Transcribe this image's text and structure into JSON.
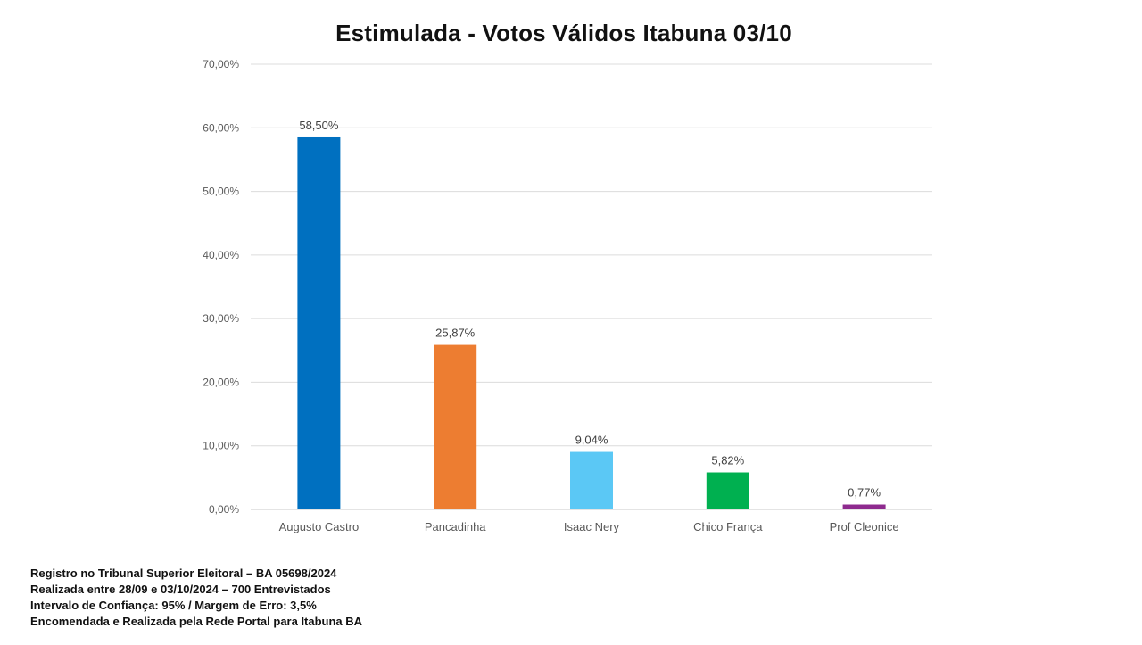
{
  "chart_data": {
    "type": "bar",
    "title": "Estimulada - Votos Válidos Itabuna 03/10",
    "xlabel": "",
    "ylabel": "",
    "categories": [
      "Augusto Castro",
      "Pancadinha",
      "Isaac Nery",
      "Chico França",
      "Prof Cleonice"
    ],
    "values": [
      58.5,
      25.87,
      9.04,
      5.82,
      0.77
    ],
    "data_labels": [
      "58,50%",
      "25,87%",
      "9,04%",
      "5,82%",
      "0,77%"
    ],
    "bar_colors": [
      "#0070C0",
      "#ED7D31",
      "#5BC8F5",
      "#00B050",
      "#8E2A8E"
    ],
    "ylim": [
      0,
      70
    ],
    "yticks": [
      0,
      10,
      20,
      30,
      40,
      50,
      60,
      70
    ],
    "ytick_labels": [
      "0,00%",
      "10,00%",
      "20,00%",
      "30,00%",
      "40,00%",
      "50,00%",
      "60,00%",
      "70,00%"
    ],
    "grid": true,
    "legend": "none"
  },
  "footer": {
    "line1": "Registro no Tribunal Superior Eleitoral – BA 05698/2024",
    "line2": "Realizada entre 28/09 e 03/10/2024 – 700 Entrevistados",
    "line3": "Intervalo de Confiança: 95% / Margem de Erro: 3,5%",
    "line4": "Encomendada e Realizada pela Rede Portal para Itabuna BA"
  }
}
